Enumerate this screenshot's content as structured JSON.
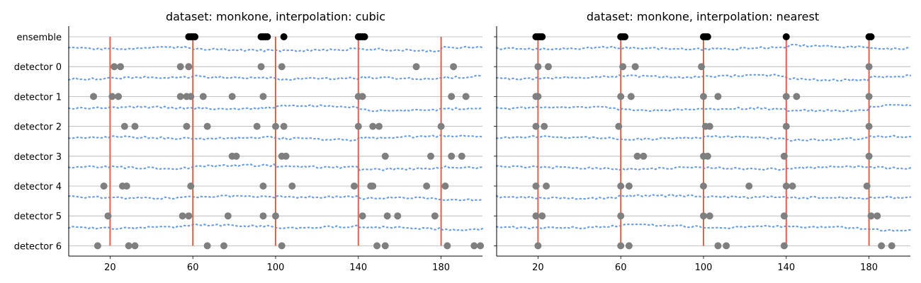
{
  "colors": {
    "change_line": "#ee5d45",
    "signal_dots": "#6a9fe6",
    "detections": "#7f7f7f",
    "ensemble": "#000000",
    "grid": "#b0b0b0"
  },
  "chart_data": [
    {
      "type": "scatter",
      "title": "dataset: monkone, interpolation: cubic",
      "xlim": [
        0,
        200
      ],
      "x_ticks": [
        20,
        60,
        100,
        140,
        180
      ],
      "rows": [
        "ensemble",
        "detector 0",
        "detector 1",
        "detector 2",
        "detector 3",
        "detector 4",
        "detector 5",
        "detector 6"
      ],
      "grid": "horizontal",
      "change_points": [
        20,
        60,
        100,
        140,
        180
      ],
      "detections": [
        {
          "row": "ensemble",
          "x": [
            58,
            59,
            60,
            61,
            93,
            94,
            95,
            96,
            104,
            140,
            141,
            142,
            143
          ]
        },
        {
          "row": "detector 0",
          "x": [
            22,
            25,
            54,
            58,
            93,
            103,
            168,
            186
          ]
        },
        {
          "row": "detector 1",
          "x": [
            12,
            21,
            24,
            54,
            57,
            59,
            65,
            79,
            94,
            140,
            142,
            185,
            192
          ]
        },
        {
          "row": "detector 2",
          "x": [
            27,
            32,
            57,
            67,
            91,
            100,
            104,
            140,
            147,
            150,
            180
          ]
        },
        {
          "row": "detector 3",
          "x": [
            79,
            81,
            103,
            105,
            153,
            175,
            185,
            190
          ]
        },
        {
          "row": "detector 4",
          "x": [
            17,
            26,
            28,
            59,
            94,
            108,
            138,
            146,
            147,
            173,
            182
          ]
        },
        {
          "row": "detector 5",
          "x": [
            19,
            55,
            58,
            77,
            94,
            100,
            142,
            154,
            159,
            177
          ]
        },
        {
          "row": "detector 6",
          "x": [
            14,
            29,
            32,
            67,
            75,
            103,
            149,
            153,
            183,
            196,
            199
          ]
        }
      ]
    },
    {
      "type": "scatter",
      "title": "dataset: monkone, interpolation: nearest",
      "xlim": [
        0,
        200
      ],
      "x_ticks": [
        20,
        60,
        100,
        140,
        180
      ],
      "rows": [
        "ensemble",
        "detector 0",
        "detector 1",
        "detector 2",
        "detector 3",
        "detector 4",
        "detector 5",
        "detector 6"
      ],
      "grid": "horizontal",
      "change_points": [
        20,
        60,
        100,
        140,
        180
      ],
      "detections": [
        {
          "row": "ensemble",
          "x": [
            19,
            20,
            21,
            22,
            60,
            61,
            62,
            100,
            101,
            102,
            140,
            180,
            181
          ]
        },
        {
          "row": "detector 0",
          "x": [
            20,
            25,
            61,
            67,
            99,
            180
          ]
        },
        {
          "row": "detector 1",
          "x": [
            19,
            20,
            60,
            65,
            100,
            107,
            140,
            145,
            180
          ]
        },
        {
          "row": "detector 2",
          "x": [
            19,
            23,
            59,
            101,
            103,
            140,
            180
          ]
        },
        {
          "row": "detector 3",
          "x": [
            68,
            71,
            100,
            102,
            139,
            180
          ]
        },
        {
          "row": "detector 4",
          "x": [
            19,
            24,
            60,
            64,
            100,
            122,
            140,
            143,
            179
          ]
        },
        {
          "row": "detector 5",
          "x": [
            19,
            22,
            60,
            100,
            103,
            139,
            181,
            184
          ]
        },
        {
          "row": "detector 6",
          "x": [
            20,
            60,
            64,
            107,
            111,
            139,
            186,
            191
          ]
        }
      ]
    }
  ]
}
